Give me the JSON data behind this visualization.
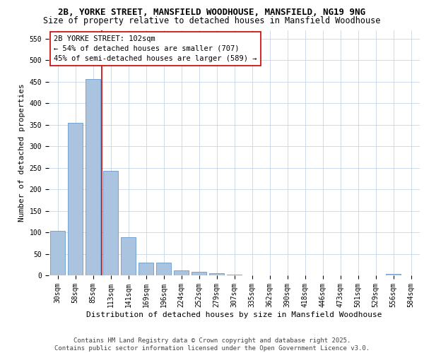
{
  "title_line1": "2B, YORKE STREET, MANSFIELD WOODHOUSE, MANSFIELD, NG19 9NG",
  "title_line2": "Size of property relative to detached houses in Mansfield Woodhouse",
  "xlabel": "Distribution of detached houses by size in Mansfield Woodhouse",
  "ylabel": "Number of detached properties",
  "categories": [
    "30sqm",
    "58sqm",
    "85sqm",
    "113sqm",
    "141sqm",
    "169sqm",
    "196sqm",
    "224sqm",
    "252sqm",
    "279sqm",
    "307sqm",
    "335sqm",
    "362sqm",
    "390sqm",
    "418sqm",
    "446sqm",
    "473sqm",
    "501sqm",
    "529sqm",
    "556sqm",
    "584sqm"
  ],
  "values": [
    103,
    355,
    456,
    243,
    88,
    30,
    30,
    12,
    8,
    5,
    2,
    0,
    0,
    0,
    0,
    0,
    0,
    0,
    0,
    4,
    0
  ],
  "bar_color": "#aac4df",
  "bar_edge_color": "#6699cc",
  "vline_x": 2.5,
  "vline_color": "#cc0000",
  "annotation_text": "2B YORKE STREET: 102sqm\n← 54% of detached houses are smaller (707)\n45% of semi-detached houses are larger (589) →",
  "annotation_box_color": "#ffffff",
  "annotation_box_edge": "#cc0000",
  "ylim": [
    0,
    570
  ],
  "yticks": [
    0,
    50,
    100,
    150,
    200,
    250,
    300,
    350,
    400,
    450,
    500,
    550
  ],
  "background_color": "#ffffff",
  "grid_color": "#c8d4e8",
  "footnote": "Contains HM Land Registry data © Crown copyright and database right 2025.\nContains public sector information licensed under the Open Government Licence v3.0.",
  "title_fontsize": 9,
  "subtitle_fontsize": 8.5,
  "axis_label_fontsize": 8,
  "tick_fontsize": 7,
  "annotation_fontsize": 7.5,
  "footnote_fontsize": 6.5
}
